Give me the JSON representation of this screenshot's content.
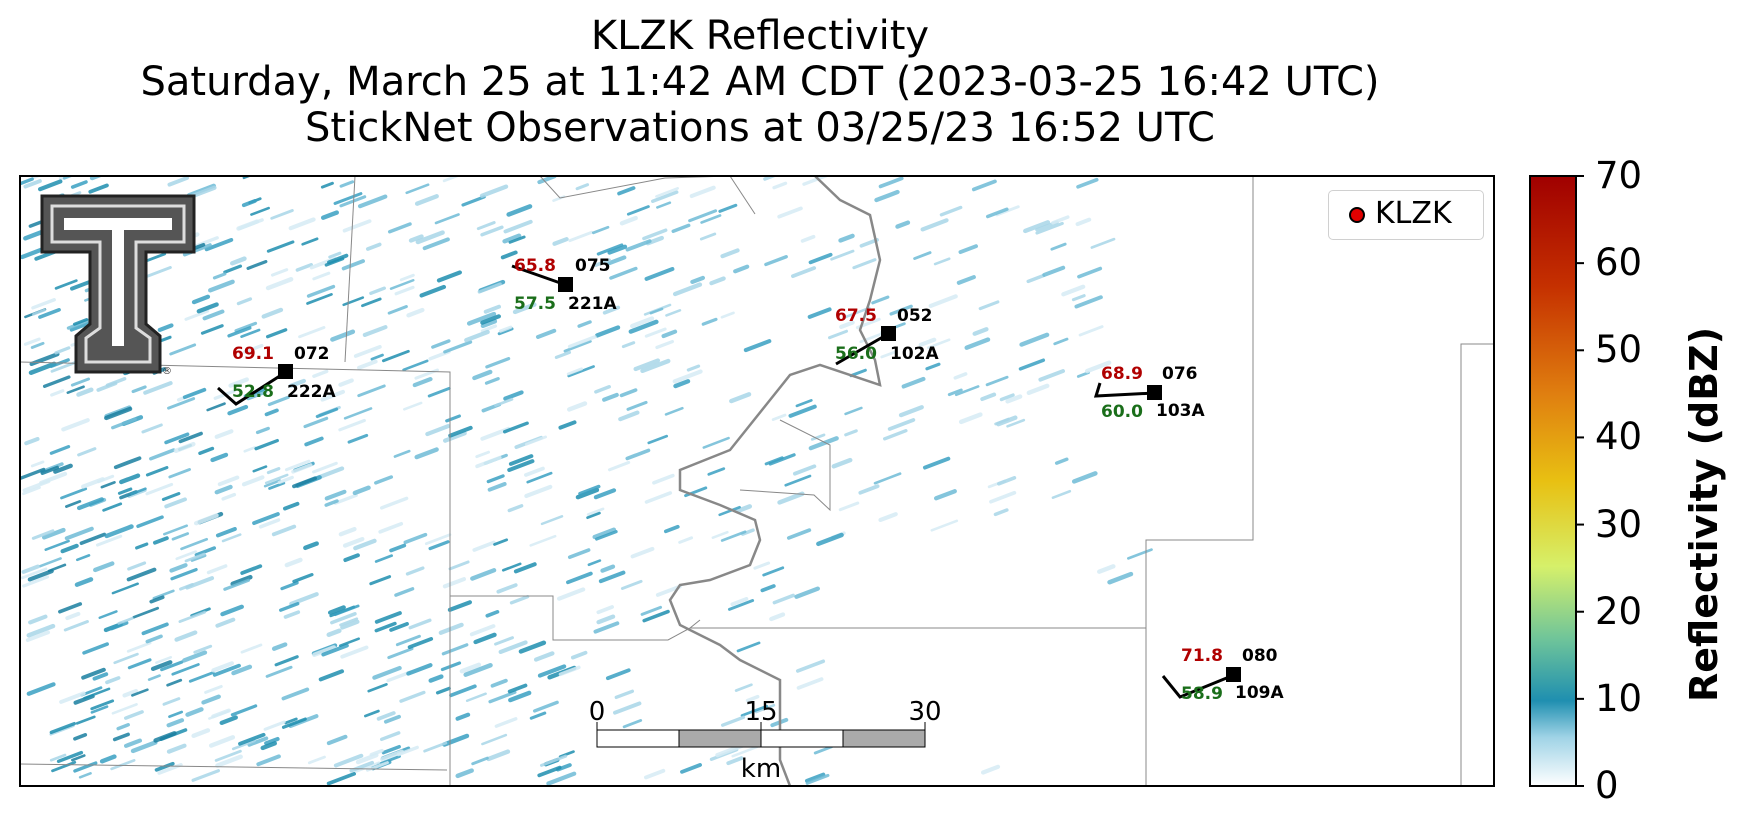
{
  "title": {
    "line1": "KLZK Reflectivity",
    "line2": "Saturday, March 25 at 11:42 AM CDT (2023-03-25 16:42 UTC)",
    "line3": "StickNet Observations at 03/25/23 16:52 UTC"
  },
  "legend": {
    "label": "KLZK",
    "marker_color": "#e00000"
  },
  "colorbar": {
    "label": "Reflectivity (dBZ)",
    "ticks": [
      "0",
      "10",
      "20",
      "30",
      "40",
      "50",
      "60",
      "70"
    ],
    "colors": [
      "#ffffff",
      "#1f8fb0",
      "#7ecb8f",
      "#dff06a",
      "#e6c21a",
      "#e07a10",
      "#c02000",
      "#a00000"
    ]
  },
  "scalebar": {
    "labels": [
      "0",
      "15",
      "30"
    ],
    "unit": "km"
  },
  "stations": [
    {
      "temp": "69.1",
      "dew": "52.8",
      "id": "072",
      "name": "222A"
    },
    {
      "temp": "65.8",
      "dew": "57.5",
      "id": "075",
      "name": "221A"
    },
    {
      "temp": "67.5",
      "dew": "56.0",
      "id": "052",
      "name": "102A"
    },
    {
      "temp": "68.9",
      "dew": "60.0",
      "id": "076",
      "name": "103A"
    },
    {
      "temp": "71.8",
      "dew": "58.9",
      "id": "080",
      "name": "109A"
    }
  ],
  "colors": {
    "temp": "#b00000",
    "dew": "#1a6e1a",
    "radar": "#1f8fb0"
  }
}
